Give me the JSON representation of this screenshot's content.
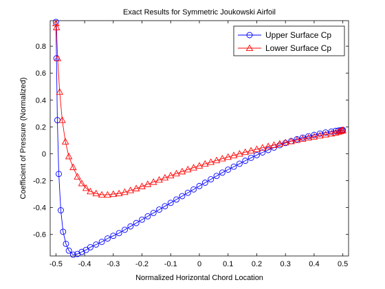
{
  "chart_data": {
    "type": "line",
    "title": "Exact Results for Symmetric Joukowski Airfoil",
    "xlabel": "Normalized Horizontal Chord Location",
    "ylabel": "Coefficient of Pressure (Normalized)",
    "xlim": [
      -0.52,
      0.52
    ],
    "ylim": [
      -0.76,
      0.99
    ],
    "xticks": [
      -0.5,
      -0.4,
      -0.3,
      -0.2,
      -0.1,
      0,
      0.1,
      0.2,
      0.3,
      0.4,
      0.5
    ],
    "xtick_labels": [
      "-0.5",
      "-0.4",
      "-0.3",
      "-0.2",
      "-0.1",
      "0",
      "0.1",
      "0.2",
      "0.3",
      "0.4",
      "0.5"
    ],
    "yticks": [
      -0.6,
      -0.4,
      -0.2,
      0,
      0.2,
      0.4,
      0.6,
      0.8
    ],
    "ytick_labels": [
      "-0.6",
      "-0.4",
      "-0.2",
      "0",
      "0.2",
      "0.4",
      "0.6",
      "0.8"
    ],
    "grid": false,
    "legend_position": "top-right",
    "series": [
      {
        "name": "Upper Surface Cp",
        "color": "#0000ff",
        "marker": "circle",
        "x": [
          -0.5,
          -0.498,
          -0.495,
          -0.49,
          -0.483,
          -0.475,
          -0.465,
          -0.455,
          -0.44,
          -0.425,
          -0.41,
          -0.395,
          -0.38,
          -0.36,
          -0.34,
          -0.32,
          -0.3,
          -0.28,
          -0.26,
          -0.24,
          -0.22,
          -0.2,
          -0.18,
          -0.16,
          -0.14,
          -0.12,
          -0.1,
          -0.08,
          -0.06,
          -0.04,
          -0.02,
          0,
          0.02,
          0.04,
          0.06,
          0.08,
          0.1,
          0.12,
          0.14,
          0.16,
          0.18,
          0.2,
          0.22,
          0.24,
          0.26,
          0.28,
          0.3,
          0.32,
          0.34,
          0.36,
          0.38,
          0.4,
          0.42,
          0.44,
          0.46,
          0.475,
          0.485,
          0.492,
          0.497,
          0.5
        ],
        "y": [
          0.98,
          0.71,
          0.25,
          -0.15,
          -0.42,
          -0.58,
          -0.67,
          -0.72,
          -0.75,
          -0.745,
          -0.73,
          -0.715,
          -0.695,
          -0.675,
          -0.655,
          -0.63,
          -0.61,
          -0.59,
          -0.565,
          -0.54,
          -0.515,
          -0.49,
          -0.465,
          -0.44,
          -0.415,
          -0.39,
          -0.365,
          -0.34,
          -0.315,
          -0.29,
          -0.265,
          -0.24,
          -0.215,
          -0.19,
          -0.165,
          -0.14,
          -0.118,
          -0.096,
          -0.074,
          -0.052,
          -0.03,
          -0.01,
          0.01,
          0.028,
          0.046,
          0.064,
          0.08,
          0.094,
          0.108,
          0.12,
          0.13,
          0.14,
          0.15,
          0.158,
          0.165,
          0.17,
          0.173,
          0.175,
          0.176,
          0.177
        ]
      },
      {
        "name": "Lower Surface Cp",
        "color": "#ff0000",
        "marker": "triangle",
        "x": [
          -0.5,
          -0.498,
          -0.494,
          -0.487,
          -0.478,
          -0.467,
          -0.455,
          -0.44,
          -0.425,
          -0.41,
          -0.395,
          -0.38,
          -0.36,
          -0.34,
          -0.32,
          -0.3,
          -0.28,
          -0.26,
          -0.24,
          -0.22,
          -0.2,
          -0.18,
          -0.16,
          -0.14,
          -0.12,
          -0.1,
          -0.08,
          -0.06,
          -0.04,
          -0.02,
          0,
          0.02,
          0.04,
          0.06,
          0.08,
          0.1,
          0.12,
          0.14,
          0.16,
          0.18,
          0.2,
          0.22,
          0.24,
          0.26,
          0.28,
          0.3,
          0.32,
          0.34,
          0.36,
          0.38,
          0.4,
          0.42,
          0.44,
          0.46,
          0.475,
          0.485,
          0.492,
          0.497,
          0.5
        ],
        "y": [
          0.97,
          0.94,
          0.71,
          0.46,
          0.25,
          0.09,
          -0.02,
          -0.1,
          -0.17,
          -0.22,
          -0.255,
          -0.28,
          -0.295,
          -0.305,
          -0.305,
          -0.3,
          -0.295,
          -0.285,
          -0.272,
          -0.258,
          -0.242,
          -0.226,
          -0.21,
          -0.194,
          -0.178,
          -0.162,
          -0.147,
          -0.132,
          -0.117,
          -0.103,
          -0.089,
          -0.075,
          -0.062,
          -0.049,
          -0.036,
          -0.024,
          -0.012,
          0,
          0.012,
          0.023,
          0.034,
          0.045,
          0.055,
          0.065,
          0.075,
          0.084,
          0.093,
          0.102,
          0.111,
          0.119,
          0.127,
          0.135,
          0.143,
          0.15,
          0.157,
          0.163,
          0.168,
          0.172,
          0.175
        ]
      }
    ]
  }
}
